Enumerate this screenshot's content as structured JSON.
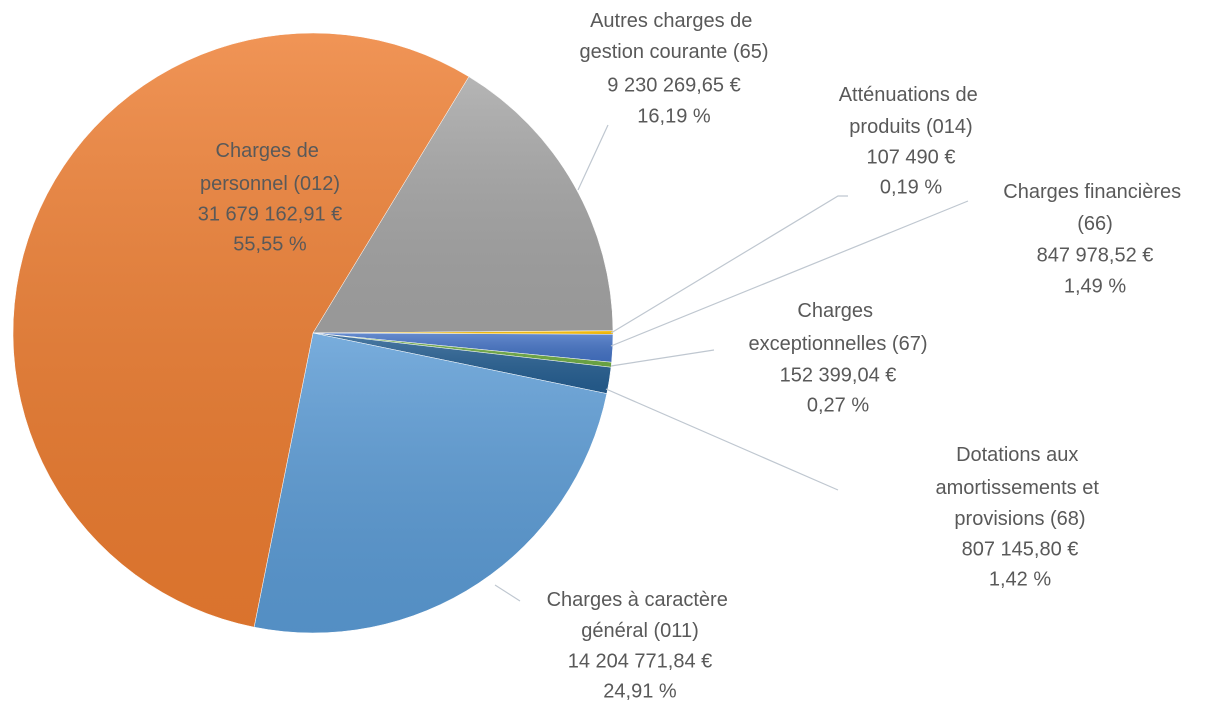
{
  "chart_data": {
    "type": "pie",
    "categories": [
      "Autres charges de gestion courante (65)",
      "Atténuations de produits (014)",
      "Charges financières (66)",
      "Charges exceptionnelles (67)",
      "Dotations aux amortissements et provisions (68)",
      "Charges à caractère général (011)",
      "Charges de personnel (012)"
    ],
    "values": [
      9230269.65,
      107490,
      847978.52,
      152399.04,
      807145.8,
      14204771.84,
      31679162.91
    ],
    "value_labels": [
      "9 230 269,65 €",
      "107 490 €",
      "847 978,52 €",
      "152 399,04 €",
      "807 145,80 €",
      "14 204 771,84 €",
      "31 679 162,91 €"
    ],
    "percents": [
      16.19,
      0.19,
      1.49,
      0.27,
      1.42,
      24.91,
      55.55
    ],
    "percent_labels": [
      "16,19 %",
      "0,19 %",
      "1,49 %",
      "0,27 %",
      "1,42 %",
      "24,91 %",
      "55,55 %"
    ],
    "colors": [
      "#a5a5a5",
      "#ffc000",
      "#4472c4",
      "#70ad47",
      "#255e91",
      "#5b9bd5",
      "#ed7d31"
    ]
  }
}
